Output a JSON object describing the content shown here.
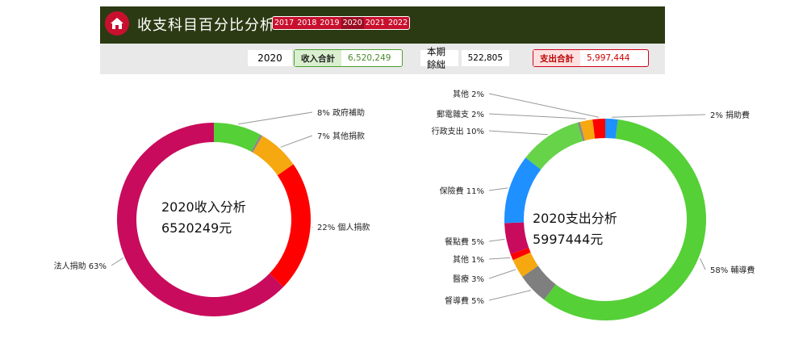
{
  "header": {
    "title": "收支科目百分比分析",
    "years": [
      "2017",
      "2018",
      "2019",
      "2020",
      "2021",
      "2022"
    ],
    "selected_year": "2020"
  },
  "summary": {
    "year": "2020",
    "income_label": "收入合計",
    "income_value": "6,520,249",
    "balance_label": "本期餘絀",
    "balance_value": "522,805",
    "expense_label": "支出合計",
    "expense_value": "5,997,444"
  },
  "colors": {
    "header_bg": "#2b3a13",
    "accent_red": "#c8102e",
    "income_border": "#4aa02c",
    "expense_border": "#d0021b"
  },
  "chart_data": [
    {
      "type": "pie",
      "center_title": "2020收入分析",
      "center_value": "6520249元",
      "slices": [
        {
          "label": "政府補助",
          "pct_label": "8%",
          "value": 8,
          "color": "#55d037"
        },
        {
          "label": "",
          "pct_label": "",
          "value": 0.4,
          "color": "#8a8a8a"
        },
        {
          "label": "其他捐款",
          "pct_label": "7%",
          "value": 7,
          "color": "#f5a80f"
        },
        {
          "label": "個人捐款",
          "pct_label": "22%",
          "value": 22,
          "color": "#fe0000"
        },
        {
          "label": "法人捐助",
          "pct_label": "63%",
          "value": 63,
          "color": "#c80b5d"
        }
      ]
    },
    {
      "type": "pie",
      "center_title": "2020支出分析",
      "center_value": "5997444元",
      "slices": [
        {
          "label": "捐助費",
          "pct_label": "2%",
          "value": 2,
          "color": "#1e90ff"
        },
        {
          "label": "輔導費",
          "pct_label": "58%",
          "value": 58,
          "color": "#55d037"
        },
        {
          "label": "督導費",
          "pct_label": "5%",
          "value": 5,
          "color": "#7f7f7f"
        },
        {
          "label": "醫療",
          "pct_label": "3%",
          "value": 3,
          "color": "#f5a80f"
        },
        {
          "label": "其他",
          "pct_label": "1%",
          "value": 1,
          "color": "#fe0000"
        },
        {
          "label": "餐點費",
          "pct_label": "5%",
          "value": 5,
          "color": "#c80b5d"
        },
        {
          "label": "保險費",
          "pct_label": "11%",
          "value": 11,
          "color": "#1e90ff"
        },
        {
          "label": "行政支出",
          "pct_label": "10%",
          "value": 10,
          "color": "#66d348"
        },
        {
          "label": "",
          "pct_label": "",
          "value": 0.4,
          "color": "#8a8a8a"
        },
        {
          "label": "郵電雜支",
          "pct_label": "2%",
          "value": 2,
          "color": "#f5a80f"
        },
        {
          "label": "其他",
          "pct_label": "2%",
          "value": 2,
          "color": "#fe0000"
        }
      ]
    }
  ]
}
